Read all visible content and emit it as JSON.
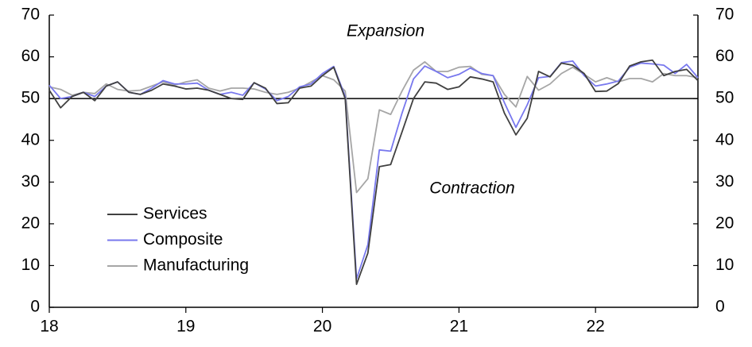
{
  "chart_data": {
    "type": "line",
    "x": [
      18,
      18.083,
      18.167,
      18.25,
      18.333,
      18.417,
      18.5,
      18.583,
      18.667,
      18.75,
      18.833,
      18.917,
      19,
      19.083,
      19.167,
      19.25,
      19.333,
      19.417,
      19.5,
      19.583,
      19.667,
      19.75,
      19.833,
      19.917,
      20,
      20.083,
      20.167,
      20.25,
      20.333,
      20.417,
      20.5,
      20.583,
      20.667,
      20.75,
      20.833,
      20.917,
      21,
      21.083,
      21.167,
      21.25,
      21.333,
      21.417,
      21.5,
      21.583,
      21.667,
      21.75,
      21.833,
      21.917,
      22,
      22.083,
      22.167,
      22.25,
      22.333,
      22.417,
      22.5,
      22.583,
      22.667,
      22.75
    ],
    "series": [
      {
        "name": "Services",
        "color": "#404040",
        "values": [
          52.0,
          47.8,
          50.5,
          51.5,
          49.5,
          53.0,
          54.0,
          51.5,
          51.0,
          52.0,
          53.5,
          53.0,
          52.3,
          52.5,
          52.0,
          51.0,
          50.0,
          49.8,
          53.8,
          52.5,
          48.8,
          49.0,
          52.5,
          53.0,
          55.5,
          57.5,
          50.0,
          5.5,
          13.0,
          33.7,
          34.2,
          42.0,
          50.0,
          54.0,
          53.7,
          52.2,
          52.8,
          55.2,
          54.7,
          54.0,
          46.5,
          41.3,
          45.3,
          56.5,
          55.2,
          58.5,
          58.0,
          56.0,
          51.7,
          51.8,
          53.6,
          57.8,
          58.8,
          59.2,
          55.5,
          56.5,
          57.0,
          54.3
        ]
      },
      {
        "name": "Composite",
        "color": "#7878ee",
        "values": [
          53.2,
          50.0,
          50.5,
          51.5,
          50.5,
          53.0,
          54.0,
          51.5,
          51.0,
          52.5,
          54.3,
          53.5,
          53.5,
          53.7,
          52.0,
          51.0,
          51.5,
          50.8,
          53.8,
          52.3,
          49.5,
          50.5,
          52.8,
          53.5,
          56.0,
          57.7,
          50.5,
          6.8,
          15.0,
          37.7,
          37.4,
          46.5,
          54.7,
          57.8,
          56.5,
          55.0,
          55.8,
          57.3,
          56.0,
          55.5,
          49.0,
          43.1,
          48.5,
          55.0,
          55.3,
          58.6,
          59.0,
          55.5,
          53.0,
          53.5,
          54.2,
          57.5,
          58.5,
          58.3,
          58.0,
          56.0,
          58.2,
          55.0
        ]
      },
      {
        "name": "Manufacturing",
        "color": "#a6a6a6",
        "values": [
          52.8,
          52.2,
          50.8,
          51.5,
          51.2,
          53.5,
          52.2,
          51.8,
          52.0,
          53.0,
          54.0,
          53.2,
          54.0,
          54.5,
          52.5,
          51.8,
          52.5,
          52.5,
          52.3,
          51.5,
          51.0,
          51.5,
          52.5,
          54.0,
          55.5,
          54.5,
          51.8,
          27.5,
          30.8,
          47.3,
          46.2,
          51.8,
          56.8,
          58.8,
          56.5,
          56.5,
          57.5,
          57.7,
          55.8,
          55.5,
          51.0,
          48.0,
          55.3,
          52.0,
          53.5,
          56.0,
          57.5,
          55.8,
          54.0,
          55.0,
          54.0,
          54.8,
          54.8,
          54.0,
          56.0,
          55.5,
          55.5,
          55.0
        ]
      }
    ],
    "xlim": [
      18,
      22.75
    ],
    "xticks": [
      18,
      19,
      20,
      21,
      22
    ],
    "ylim": [
      0,
      70
    ],
    "yticks": [
      0,
      10,
      20,
      30,
      40,
      50,
      60,
      70
    ],
    "y2lim": [
      0,
      70
    ],
    "y2ticks": [
      0,
      10,
      20,
      30,
      40,
      50,
      60,
      70
    ],
    "reference_line": 50,
    "annotations": [
      "Expansion",
      "Contraction"
    ],
    "grid": false,
    "legend": "lower left"
  }
}
